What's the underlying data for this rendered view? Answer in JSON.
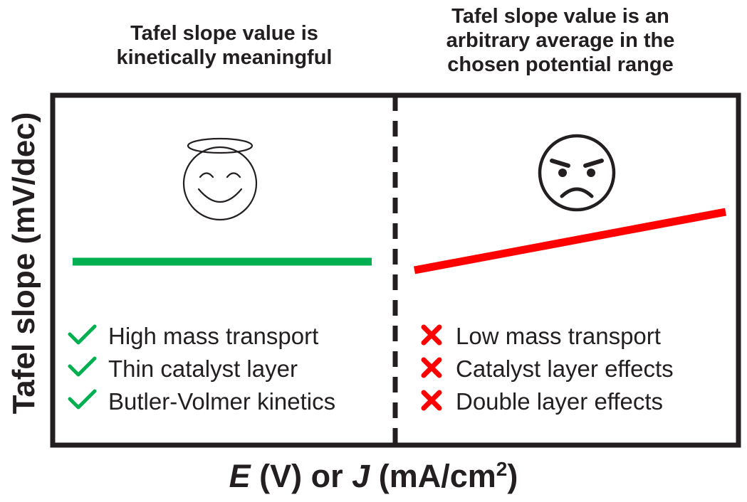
{
  "header_left": [
    "Tafel slope value is",
    "kinetically meaningful"
  ],
  "header_right": [
    "Tafel slope value is an",
    "arbitrary average in the",
    "chosen potential range"
  ],
  "ylabel": "Tafel slope (mV/dec)",
  "xlabel": {
    "e": "E",
    "e_unit": " (V) or ",
    "j": "J",
    "j_unit": " (mA/cm",
    "exp": "2",
    "close": ")"
  },
  "left_panel": {
    "face": "halo-smiling-face-icon",
    "line_color": "#00b050",
    "slope_trend": "flat",
    "conditions_icon": "check-icon",
    "conditions_color": "#00b050",
    "conditions": [
      "High mass transport",
      "Thin catalyst layer",
      "Butler-Volmer kinetics"
    ]
  },
  "right_panel": {
    "face": "angry-face-icon",
    "line_color": "#ff0000",
    "slope_trend": "rising",
    "conditions_icon": "cross-icon",
    "conditions_color": "#ff0000",
    "conditions": [
      "Low mass transport",
      "Catalyst layer effects",
      "Double layer effects"
    ]
  }
}
